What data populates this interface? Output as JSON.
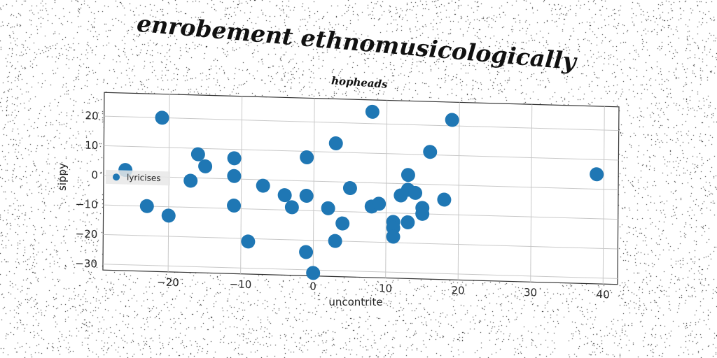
{
  "chart_data": {
    "type": "scatter",
    "title": "enrobement ethnomusicologically",
    "subtitle": "hopheads",
    "xlabel": "uncontrite",
    "ylabel": "sippy",
    "xlim": [
      -29,
      42
    ],
    "ylim": [
      -32,
      28
    ],
    "xticks": [
      -20,
      -10,
      0,
      10,
      20,
      30,
      40
    ],
    "yticks": [
      -30,
      -20,
      -10,
      0,
      10,
      20
    ],
    "grid": true,
    "legend_position": "center-left",
    "series": [
      {
        "name": "lyricises",
        "color": "#1f77b4",
        "points": [
          [
            -26,
            2
          ],
          [
            -21,
            20
          ],
          [
            -23,
            -10
          ],
          [
            -20,
            -13
          ],
          [
            -17,
            -1
          ],
          [
            -16,
            8
          ],
          [
            -15,
            4
          ],
          [
            -11,
            7
          ],
          [
            -11,
            1
          ],
          [
            -11,
            -9
          ],
          [
            -9,
            -21
          ],
          [
            -7,
            -2
          ],
          [
            -4,
            -5
          ],
          [
            -3,
            -9
          ],
          [
            -1,
            8
          ],
          [
            -1,
            -5
          ],
          [
            -1,
            -24
          ],
          [
            0,
            -31
          ],
          [
            2,
            -9
          ],
          [
            3,
            13
          ],
          [
            3,
            -20
          ],
          [
            4,
            -14
          ],
          [
            5,
            -2
          ],
          [
            8,
            -8
          ],
          [
            8,
            24
          ],
          [
            9,
            -7
          ],
          [
            11,
            -13
          ],
          [
            11,
            -15
          ],
          [
            11,
            -18
          ],
          [
            12,
            -4
          ],
          [
            13,
            3
          ],
          [
            13,
            -13
          ],
          [
            13,
            -2
          ],
          [
            14,
            -3
          ],
          [
            15,
            -8
          ],
          [
            15,
            -10
          ],
          [
            16,
            11
          ],
          [
            18,
            -5
          ],
          [
            19,
            22
          ],
          [
            39,
            5
          ]
        ]
      }
    ]
  }
}
